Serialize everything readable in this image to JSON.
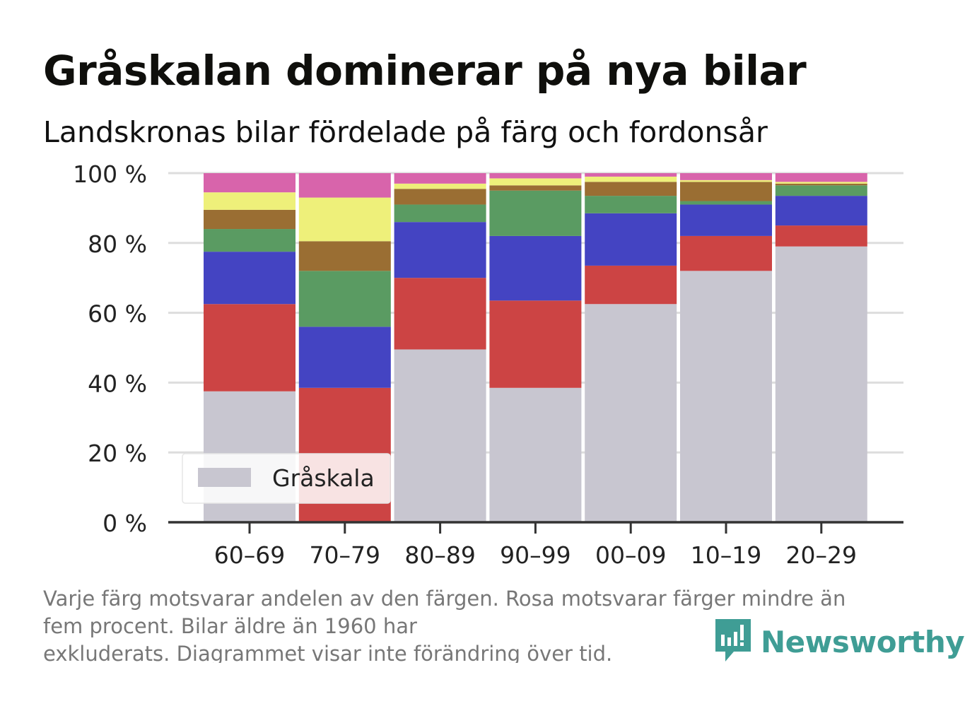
{
  "title": "Gråskalan dominerar på nya bilar",
  "subtitle": "Landskronas bilar fördelade på färg och fordonsår",
  "footnote": {
    "line1": "Varje färg motsvarar andelen av den färgen. Rosa motsvarar färger mindre än",
    "line2": "fem procent. Bilar äldre än 1960 har",
    "line3": "exkluderats. Diagrammet visar inte förändring över tid."
  },
  "logo": {
    "text": "Newsworthy",
    "icon": "newsworthy-chart-icon"
  },
  "colors": {
    "gray": "#c8c6d0",
    "red": "#cc4444",
    "blue": "#4444c2",
    "green": "#5a9b62",
    "brown": "#9a6e33",
    "yellow": "#eef07a",
    "pink": "#d864ab",
    "axis": "#333333",
    "grid": "#dddddd",
    "brand": "#3f9d95"
  },
  "chart_data": {
    "type": "bar",
    "stacked": true,
    "categories": [
      "60–69",
      "70–79",
      "80–89",
      "90–99",
      "00–09",
      "10–19",
      "20–29"
    ],
    "ylim": [
      0,
      100
    ],
    "yticks": [
      0,
      20,
      40,
      60,
      80,
      100
    ],
    "ytick_labels": [
      "0 %",
      "20 %",
      "40 %",
      "60 %",
      "80 %",
      "100 %"
    ],
    "grid": true,
    "legend": {
      "position": "bottom-left",
      "entries": [
        "Gråskala"
      ]
    },
    "series": [
      {
        "name": "Gråskala",
        "color": "#c8c6d0",
        "values": [
          37.5,
          0,
          49.5,
          38.5,
          62.5,
          72,
          79
        ]
      },
      {
        "color": "#cc4444",
        "values": [
          25,
          38.5,
          20.5,
          25,
          11,
          10,
          6
        ]
      },
      {
        "color": "#4444c2",
        "values": [
          15,
          17.5,
          16,
          18.5,
          15,
          9,
          8.5
        ]
      },
      {
        "color": "#5a9b62",
        "values": [
          6.5,
          16,
          5,
          13,
          5,
          1,
          3
        ]
      },
      {
        "color": "#9a6e33",
        "values": [
          5.5,
          8.5,
          4.5,
          1.5,
          4,
          5.5,
          0.5
        ]
      },
      {
        "color": "#eef07a",
        "values": [
          5,
          12.5,
          1.5,
          2,
          1.5,
          0.5,
          0.5
        ]
      },
      {
        "color": "#d864ab",
        "values": [
          5.5,
          7,
          3,
          1.5,
          1,
          2,
          2.5
        ]
      }
    ]
  }
}
